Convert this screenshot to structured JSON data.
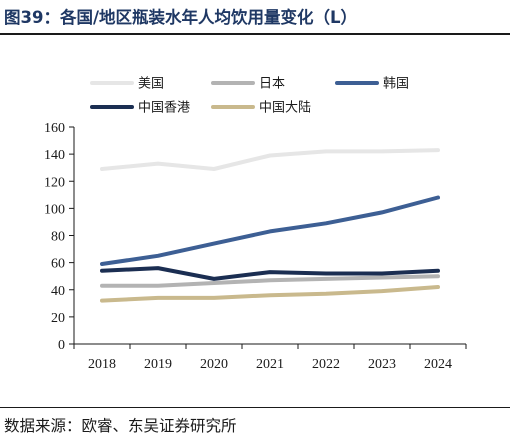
{
  "title": "图39：各国/地区瓶装水年人均饮用量变化（L）",
  "source": "数据来源：欧睿、东吴证券研究所",
  "chart_data": {
    "type": "line",
    "title": "",
    "xlabel": "",
    "ylabel": "",
    "x": [
      "2018",
      "2019",
      "2020",
      "2021",
      "2022",
      "2023",
      "2024"
    ],
    "ylim": [
      0,
      160
    ],
    "yticks": [
      0,
      20,
      40,
      60,
      80,
      100,
      120,
      140,
      160
    ],
    "grid": false,
    "legend_position": "top",
    "series": [
      {
        "name": "美国",
        "color": "#e6e6e6",
        "values": [
          129,
          133,
          129,
          139,
          142,
          142,
          143
        ]
      },
      {
        "name": "日本",
        "color": "#b3b3b3",
        "values": [
          43,
          43,
          45,
          47,
          48,
          49,
          50
        ]
      },
      {
        "name": "韩国",
        "color": "#3d5f94",
        "values": [
          59,
          65,
          74,
          83,
          89,
          97,
          108
        ]
      },
      {
        "name": "中国香港",
        "color": "#1b2e52",
        "values": [
          54,
          56,
          48,
          53,
          52,
          52,
          54
        ]
      },
      {
        "name": "中国大陆",
        "color": "#c9b98d",
        "values": [
          32,
          34,
          34,
          36,
          37,
          39,
          42
        ]
      }
    ]
  }
}
